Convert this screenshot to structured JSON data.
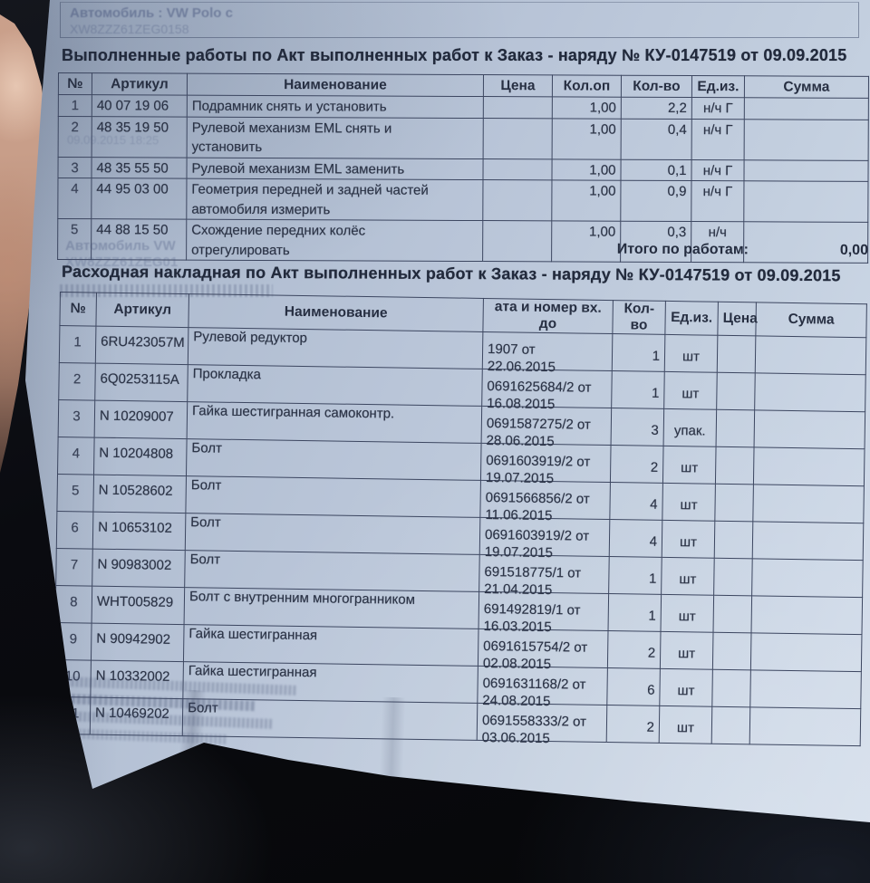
{
  "vehicle_box": {
    "line1": "Автомобиль : VW Polo с",
    "line2": "XW8ZZZ61ZEG0158"
  },
  "work_report": {
    "title": "Выполненные работы по Акт выполненных работ к Заказ - наряду № КУ-0147519 от 09.09.2015",
    "columns": {
      "num": "№",
      "article": "Артикул",
      "name": "Наименование",
      "price": "Цена",
      "qty_op": "Кол.оп",
      "qty": "Кол-во",
      "unit": "Ед.из.",
      "sum": "Сумма"
    },
    "rows": [
      {
        "num": "1",
        "article": "40 07 19 06",
        "name": "Подрамник снять и установить",
        "price": "",
        "qty_op": "1,00",
        "qty": "2,2",
        "unit": "н/ч Г",
        "sum": ""
      },
      {
        "num": "2",
        "article": "48 35 19 50",
        "name": "Рулевой механизм EML снять и\nустановить",
        "price": "",
        "qty_op": "1,00",
        "qty": "0,4",
        "unit": "н/ч Г",
        "sum": ""
      },
      {
        "num": "3",
        "article": "48 35 55 50",
        "name": "Рулевой механизм EML заменить",
        "price": "",
        "qty_op": "1,00",
        "qty": "0,1",
        "unit": "н/ч Г",
        "sum": ""
      },
      {
        "num": "4",
        "article": "44 95 03 00",
        "name": "Геометрия передней и задней частей\nавтомобиля измерить",
        "price": "",
        "qty_op": "1,00",
        "qty": "0,9",
        "unit": "н/ч Г",
        "sum": ""
      },
      {
        "num": "5",
        "article": "44 88 15 50",
        "name": "Схождение передних колёс\nотрегулировать",
        "price": "",
        "qty_op": "1,00",
        "qty": "0,3",
        "unit": "н/ч",
        "sum": ""
      }
    ],
    "total_label": "Итого по работам:",
    "total_value": "0,00"
  },
  "invoice": {
    "title": "Расходная накладная по Акт выполненных работ к Заказ - наряду № КУ-0147519 от 09.09.2015",
    "columns": {
      "num": "№",
      "article": "Артикул",
      "name": "Наименование",
      "doc": "ата и номер вх. до",
      "qty": "Кол-во",
      "unit": "Ед.из.",
      "price": "Цена",
      "sum": "Сумма"
    },
    "rows": [
      {
        "num": "1",
        "article": "6RU423057M",
        "name": "Рулевой редуктор",
        "doc1": "1907 от",
        "doc2": "22.06.2015",
        "qty": "1",
        "unit": "шт",
        "price": "",
        "sum": ""
      },
      {
        "num": "2",
        "article": "6Q0253115A",
        "name": "Прокладка",
        "doc1": "0691625684/2 от",
        "doc2": "16.08.2015",
        "qty": "1",
        "unit": "шт",
        "price": "",
        "sum": ""
      },
      {
        "num": "3",
        "article": "N 10209007",
        "name": "Гайка шестигранная самоконтр.",
        "doc1": "0691587275/2 от",
        "doc2": "28.06.2015",
        "qty": "3",
        "unit": "упак.",
        "price": "",
        "sum": ""
      },
      {
        "num": "4",
        "article": "N 10204808",
        "name": "Болт",
        "doc1": "0691603919/2 от",
        "doc2": "19.07.2015",
        "qty": "2",
        "unit": "шт",
        "price": "",
        "sum": ""
      },
      {
        "num": "5",
        "article": "N 10528602",
        "name": "Болт",
        "doc1": "0691566856/2 от",
        "doc2": "11.06.2015",
        "qty": "4",
        "unit": "шт",
        "price": "",
        "sum": ""
      },
      {
        "num": "6",
        "article": "N 10653102",
        "name": "Болт",
        "doc1": "0691603919/2 от",
        "doc2": "19.07.2015",
        "qty": "4",
        "unit": "шт",
        "price": "",
        "sum": ""
      },
      {
        "num": "7",
        "article": "N 90983002",
        "name": "Болт",
        "doc1": "691518775/1 от",
        "doc2": "21.04.2015",
        "qty": "1",
        "unit": "шт",
        "price": "",
        "sum": ""
      },
      {
        "num": "8",
        "article": "WHT005829",
        "name": "Болт с внутренним многогранником",
        "doc1": "691492819/1 от",
        "doc2": "16.03.2015",
        "qty": "1",
        "unit": "шт",
        "price": "",
        "sum": ""
      },
      {
        "num": "9",
        "article": "N 90942902",
        "name": "Гайка шестигранная",
        "doc1": "0691615754/2 от",
        "doc2": "02.08.2015",
        "qty": "2",
        "unit": "шт",
        "price": "",
        "sum": ""
      },
      {
        "num": "10",
        "article": "N 10332002",
        "name": "Гайка шестигранная",
        "doc1": "0691631168/2 от",
        "doc2": "24.08.2015",
        "qty": "6",
        "unit": "шт",
        "price": "",
        "sum": ""
      },
      {
        "num": "11",
        "article": "N 10469202",
        "name": "Болт",
        "doc1": "0691558333/2 от",
        "doc2": "03.06.2015",
        "qty": "2",
        "unit": "шт",
        "price": "",
        "sum": ""
      }
    ]
  },
  "ghosts": {
    "stamp": "09.09.2015 18:25",
    "auto_line": "Автомобиль   VW",
    "vin_line": "XW8ZZZ61ZEG01"
  }
}
